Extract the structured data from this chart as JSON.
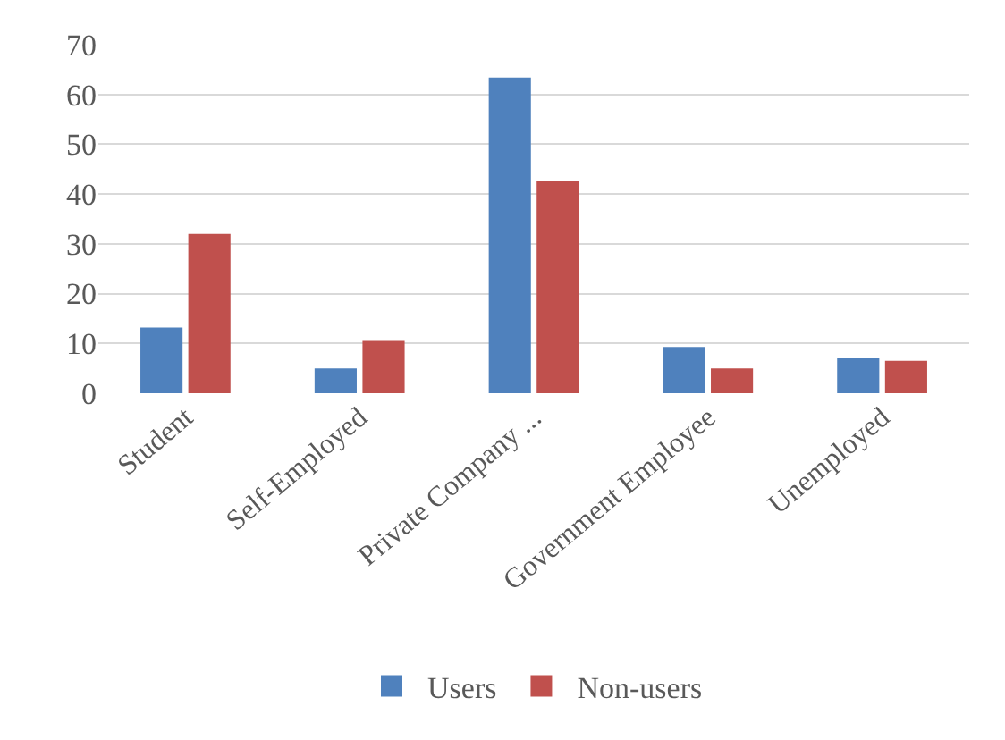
{
  "chart_data": {
    "type": "bar",
    "categories": [
      "Student",
      "Self-Employed",
      "Private Company ...",
      "Government Employee",
      "Unemployed"
    ],
    "series": [
      {
        "name": "Users",
        "color": "#4f81bd",
        "values": [
          13.2,
          5,
          63.4,
          9.3,
          7
        ]
      },
      {
        "name": "Non-users",
        "color": "#c0504d",
        "values": [
          32,
          10.7,
          42.6,
          5,
          6.5
        ]
      }
    ],
    "ylim": [
      0,
      70
    ],
    "yticks": [
      0,
      10,
      20,
      30,
      40,
      50,
      60,
      70
    ],
    "grid": "y",
    "legend": "bottom"
  }
}
